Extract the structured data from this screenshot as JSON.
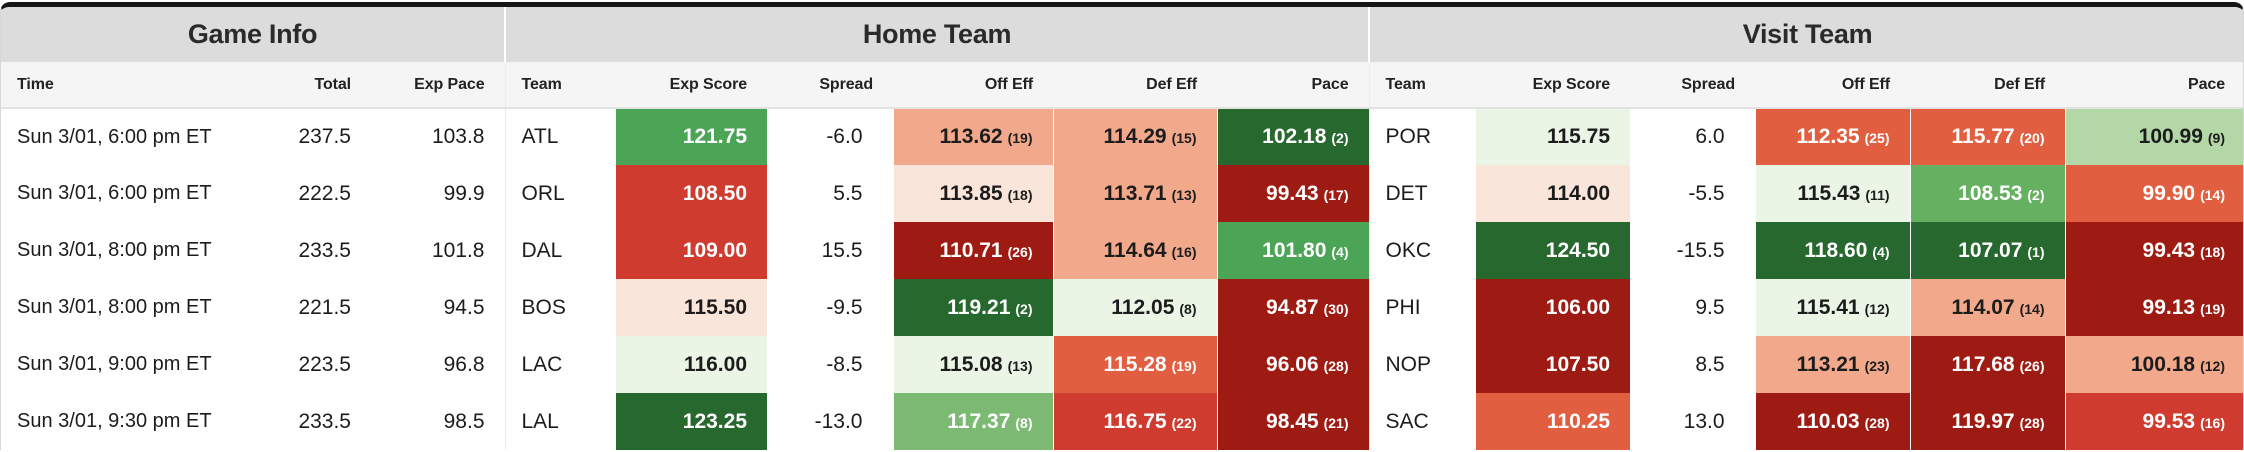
{
  "groups": {
    "game_info": "Game Info",
    "home_team": "Home Team",
    "visit_team": "Visit Team"
  },
  "columns": {
    "time": "Time",
    "total": "Total",
    "exp_pace": "Exp Pace",
    "team": "Team",
    "exp_score": "Exp Score",
    "spread": "Spread",
    "off_eff": "Off Eff",
    "def_eff": "Def Eff",
    "pace": "Pace"
  },
  "palette": {
    "dark_green": "#27682e",
    "medium_green": "#4ca457",
    "green": "#66b161",
    "light_medium_green": "#7cba74",
    "light_green": "#b3d7a6",
    "very_light_green": "#ebf5e6",
    "very_light_pink": "#fae5da",
    "salmon": "#f2a98b",
    "orange_red": "#e15f40",
    "red": "#cf3b2e",
    "dark_red": "#9e1b13",
    "text_dark": "#1c1c1c",
    "text_light": "#ffffff"
  },
  "rows": [
    {
      "time": "Sun 3/01, 6:00 pm ET",
      "total": "237.5",
      "exp_pace": "103.8",
      "home": {
        "team": "ATL",
        "exp_score": {
          "value": "121.75",
          "bg": "#4ca457",
          "fg": "#ffffff"
        },
        "spread": "-6.0",
        "off_eff": {
          "value": "113.62",
          "rank": "(19)",
          "bg": "#f2a98b",
          "fg": "#1c1c1c"
        },
        "def_eff": {
          "value": "114.29",
          "rank": "(15)",
          "bg": "#f2a98b",
          "fg": "#1c1c1c"
        },
        "pace": {
          "value": "102.18",
          "rank": "(2)",
          "bg": "#27682e",
          "fg": "#ffffff"
        }
      },
      "visit": {
        "team": "POR",
        "exp_score": {
          "value": "115.75",
          "bg": "#ebf5e6",
          "fg": "#1c1c1c"
        },
        "spread": "6.0",
        "off_eff": {
          "value": "112.35",
          "rank": "(25)",
          "bg": "#e15f40",
          "fg": "#ffffff"
        },
        "def_eff": {
          "value": "115.77",
          "rank": "(20)",
          "bg": "#e15f40",
          "fg": "#ffffff"
        },
        "pace": {
          "value": "100.99",
          "rank": "(9)",
          "bg": "#b3d7a6",
          "fg": "#1c1c1c"
        }
      }
    },
    {
      "time": "Sun 3/01, 6:00 pm ET",
      "total": "222.5",
      "exp_pace": "99.9",
      "home": {
        "team": "ORL",
        "exp_score": {
          "value": "108.50",
          "bg": "#cf3b2e",
          "fg": "#ffffff"
        },
        "spread": "5.5",
        "off_eff": {
          "value": "113.85",
          "rank": "(18)",
          "bg": "#fae5da",
          "fg": "#1c1c1c"
        },
        "def_eff": {
          "value": "113.71",
          "rank": "(13)",
          "bg": "#f2a98b",
          "fg": "#1c1c1c"
        },
        "pace": {
          "value": "99.43",
          "rank": "(17)",
          "bg": "#9e1b13",
          "fg": "#ffffff"
        }
      },
      "visit": {
        "team": "DET",
        "exp_score": {
          "value": "114.00",
          "bg": "#fae5da",
          "fg": "#1c1c1c"
        },
        "spread": "-5.5",
        "off_eff": {
          "value": "115.43",
          "rank": "(11)",
          "bg": "#ebf5e6",
          "fg": "#1c1c1c"
        },
        "def_eff": {
          "value": "108.53",
          "rank": "(2)",
          "bg": "#66b161",
          "fg": "#ffffff"
        },
        "pace": {
          "value": "99.90",
          "rank": "(14)",
          "bg": "#e15f40",
          "fg": "#ffffff"
        }
      }
    },
    {
      "time": "Sun 3/01, 8:00 pm ET",
      "total": "233.5",
      "exp_pace": "101.8",
      "home": {
        "team": "DAL",
        "exp_score": {
          "value": "109.00",
          "bg": "#cf3b2e",
          "fg": "#ffffff"
        },
        "spread": "15.5",
        "off_eff": {
          "value": "110.71",
          "rank": "(26)",
          "bg": "#9e1b13",
          "fg": "#ffffff"
        },
        "def_eff": {
          "value": "114.64",
          "rank": "(16)",
          "bg": "#f2a98b",
          "fg": "#1c1c1c"
        },
        "pace": {
          "value": "101.80",
          "rank": "(4)",
          "bg": "#4ca457",
          "fg": "#ffffff"
        }
      },
      "visit": {
        "team": "OKC",
        "exp_score": {
          "value": "124.50",
          "bg": "#27682e",
          "fg": "#ffffff"
        },
        "spread": "-15.5",
        "off_eff": {
          "value": "118.60",
          "rank": "(4)",
          "bg": "#27682e",
          "fg": "#ffffff"
        },
        "def_eff": {
          "value": "107.07",
          "rank": "(1)",
          "bg": "#27682e",
          "fg": "#ffffff"
        },
        "pace": {
          "value": "99.43",
          "rank": "(18)",
          "bg": "#9e1b13",
          "fg": "#ffffff"
        }
      }
    },
    {
      "time": "Sun 3/01, 8:00 pm ET",
      "total": "221.5",
      "exp_pace": "94.5",
      "home": {
        "team": "BOS",
        "exp_score": {
          "value": "115.50",
          "bg": "#fae5da",
          "fg": "#1c1c1c"
        },
        "spread": "-9.5",
        "off_eff": {
          "value": "119.21",
          "rank": "(2)",
          "bg": "#27682e",
          "fg": "#ffffff"
        },
        "def_eff": {
          "value": "112.05",
          "rank": "(8)",
          "bg": "#ebf5e6",
          "fg": "#1c1c1c"
        },
        "pace": {
          "value": "94.87",
          "rank": "(30)",
          "bg": "#9e1b13",
          "fg": "#ffffff"
        }
      },
      "visit": {
        "team": "PHI",
        "exp_score": {
          "value": "106.00",
          "bg": "#9e1b13",
          "fg": "#ffffff"
        },
        "spread": "9.5",
        "off_eff": {
          "value": "115.41",
          "rank": "(12)",
          "bg": "#ebf5e6",
          "fg": "#1c1c1c"
        },
        "def_eff": {
          "value": "114.07",
          "rank": "(14)",
          "bg": "#f2a98b",
          "fg": "#1c1c1c"
        },
        "pace": {
          "value": "99.13",
          "rank": "(19)",
          "bg": "#9e1b13",
          "fg": "#ffffff"
        }
      }
    },
    {
      "time": "Sun 3/01, 9:00 pm ET",
      "total": "223.5",
      "exp_pace": "96.8",
      "home": {
        "team": "LAC",
        "exp_score": {
          "value": "116.00",
          "bg": "#ebf5e6",
          "fg": "#1c1c1c"
        },
        "spread": "-8.5",
        "off_eff": {
          "value": "115.08",
          "rank": "(13)",
          "bg": "#ebf5e6",
          "fg": "#1c1c1c"
        },
        "def_eff": {
          "value": "115.28",
          "rank": "(19)",
          "bg": "#e15f40",
          "fg": "#ffffff"
        },
        "pace": {
          "value": "96.06",
          "rank": "(28)",
          "bg": "#9e1b13",
          "fg": "#ffffff"
        }
      },
      "visit": {
        "team": "NOP",
        "exp_score": {
          "value": "107.50",
          "bg": "#9e1b13",
          "fg": "#ffffff"
        },
        "spread": "8.5",
        "off_eff": {
          "value": "113.21",
          "rank": "(23)",
          "bg": "#f2a98b",
          "fg": "#1c1c1c"
        },
        "def_eff": {
          "value": "117.68",
          "rank": "(26)",
          "bg": "#9e1b13",
          "fg": "#ffffff"
        },
        "pace": {
          "value": "100.18",
          "rank": "(12)",
          "bg": "#f2a98b",
          "fg": "#1c1c1c"
        }
      }
    },
    {
      "time": "Sun 3/01, 9:30 pm ET",
      "total": "233.5",
      "exp_pace": "98.5",
      "home": {
        "team": "LAL",
        "exp_score": {
          "value": "123.25",
          "bg": "#27682e",
          "fg": "#ffffff"
        },
        "spread": "-13.0",
        "off_eff": {
          "value": "117.37",
          "rank": "(8)",
          "bg": "#7cba74",
          "fg": "#ffffff"
        },
        "def_eff": {
          "value": "116.75",
          "rank": "(22)",
          "bg": "#cf3b2e",
          "fg": "#ffffff"
        },
        "pace": {
          "value": "98.45",
          "rank": "(21)",
          "bg": "#9e1b13",
          "fg": "#ffffff"
        }
      },
      "visit": {
        "team": "SAC",
        "exp_score": {
          "value": "110.25",
          "bg": "#e15f40",
          "fg": "#ffffff"
        },
        "spread": "13.0",
        "off_eff": {
          "value": "110.03",
          "rank": "(28)",
          "bg": "#9e1b13",
          "fg": "#ffffff"
        },
        "def_eff": {
          "value": "119.97",
          "rank": "(28)",
          "bg": "#9e1b13",
          "fg": "#ffffff"
        },
        "pace": {
          "value": "99.53",
          "rank": "(16)",
          "bg": "#cf3b2e",
          "fg": "#ffffff"
        }
      }
    }
  ]
}
